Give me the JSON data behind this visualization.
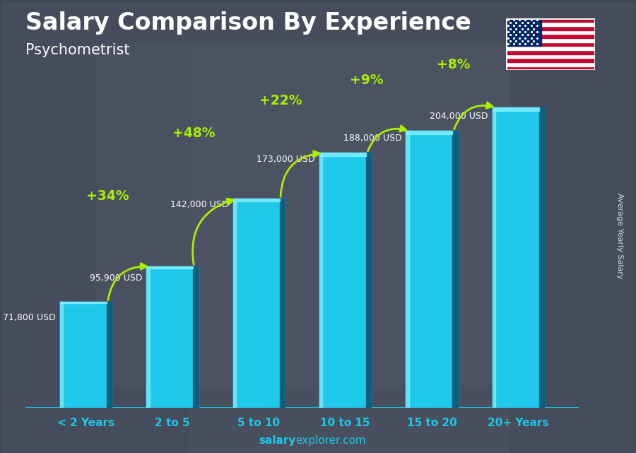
{
  "title": "Salary Comparison By Experience",
  "subtitle": "Psychometrist",
  "categories": [
    "< 2 Years",
    "2 to 5",
    "5 to 10",
    "10 to 15",
    "15 to 20",
    "20+ Years"
  ],
  "values": [
    71800,
    95900,
    142000,
    173000,
    188000,
    204000
  ],
  "labels": [
    "71,800 USD",
    "95,900 USD",
    "142,000 USD",
    "173,000 USD",
    "188,000 USD",
    "204,000 USD"
  ],
  "pct_changes": [
    "+34%",
    "+48%",
    "+22%",
    "+9%",
    "+8%"
  ],
  "bar_color_main": "#1ec8e8",
  "bar_color_dark": "#0e7fa0",
  "bar_color_light": "#80eeff",
  "bar_color_right": "#0a6080",
  "bg_color": "#5a6070",
  "overlay_color": "#00000044",
  "text_color_white": "#ffffff",
  "text_color_cyan": "#1ec8e8",
  "text_color_green": "#aaee00",
  "ylabel": "Average Yearly Salary",
  "watermark_bold": "salary",
  "watermark_normal": "explorer.com",
  "ylim_max": 240000,
  "bar_width": 0.6,
  "label_fontsize": 9.0,
  "pct_fontsize": 13.5,
  "cat_fontsize": 11.0,
  "title_fontsize": 24,
  "subtitle_fontsize": 15
}
